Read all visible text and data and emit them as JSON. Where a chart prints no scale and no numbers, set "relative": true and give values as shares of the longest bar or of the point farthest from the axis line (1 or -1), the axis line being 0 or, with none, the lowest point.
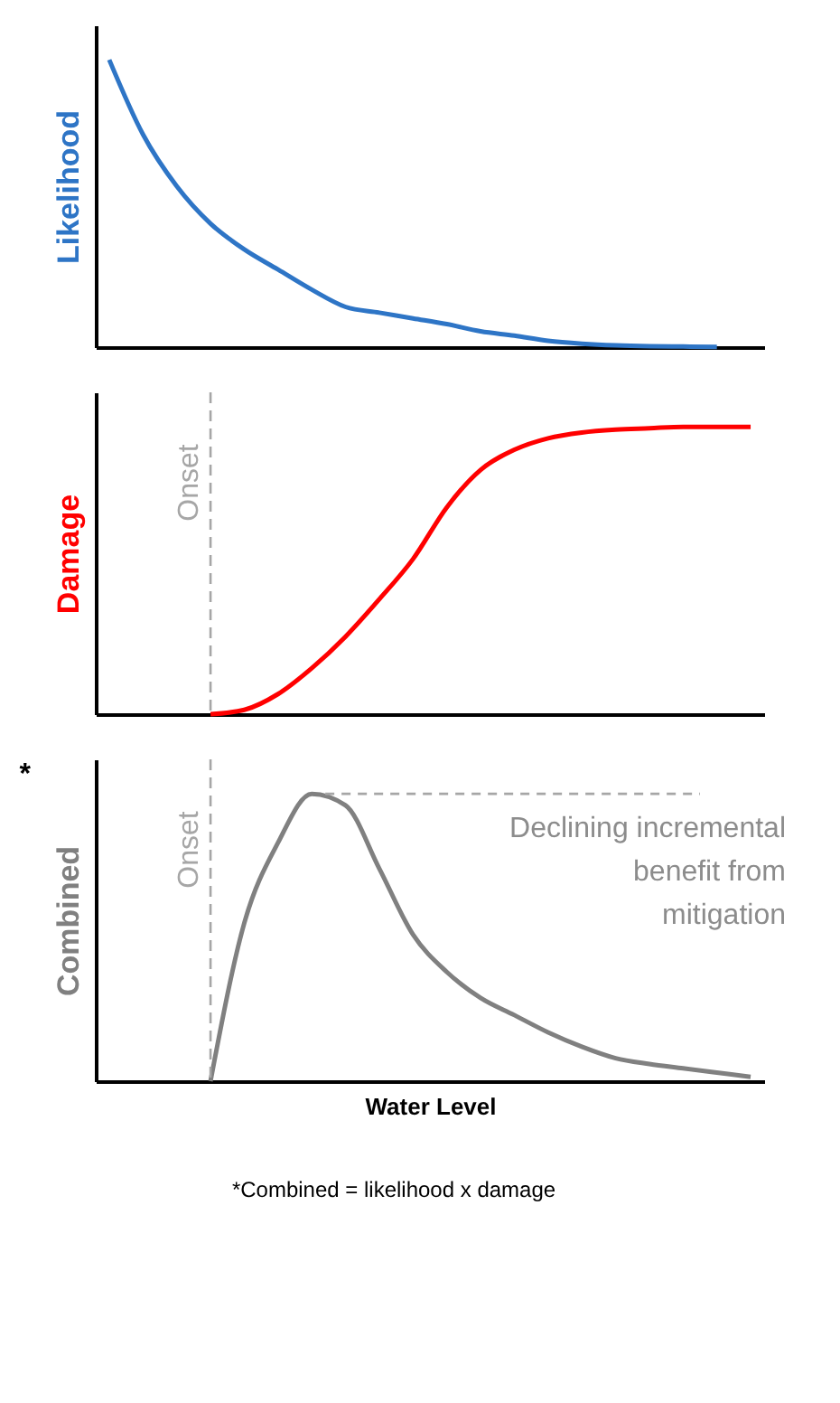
{
  "chart_data": [
    {
      "type": "line",
      "relative": true,
      "ylabel": "Likelihood",
      "categories": [
        null,
        null,
        null,
        null,
        null,
        null,
        null,
        null,
        null,
        null,
        null,
        null,
        null,
        null,
        null,
        null,
        null,
        null,
        null,
        null
      ],
      "series": [
        {
          "color": "#2e75c6",
          "values": [
            1,
            0.74,
            0.56,
            0.43,
            0.34,
            0.27,
            0.2,
            0.14,
            0.12,
            0.1,
            0.08,
            0.055,
            0.04,
            0.022,
            0.012,
            0.006,
            0.003,
            0.002,
            0.001,
            null
          ]
        }
      ]
    },
    {
      "type": "line",
      "relative": true,
      "ylabel": "Damage",
      "categories": [
        null,
        null,
        null,
        null,
        null,
        null,
        null,
        null,
        null,
        null,
        null,
        null,
        null,
        null,
        null,
        null,
        null,
        null,
        null,
        null
      ],
      "series": [
        {
          "color": "#ff0000",
          "values": [
            null,
            null,
            null,
            0,
            0.015,
            0.07,
            0.16,
            0.27,
            0.4,
            0.54,
            0.72,
            0.85,
            0.92,
            0.96,
            0.98,
            0.99,
            0.995,
            1,
            1,
            1
          ]
        }
      ],
      "annotations": [
        "Onset"
      ]
    },
    {
      "type": "line",
      "relative": true,
      "ylabel": "Combined",
      "xlabel": "Water Level",
      "categories": [
        null,
        null,
        null,
        null,
        null,
        null,
        null,
        null,
        null,
        null,
        null,
        null,
        null,
        null,
        null,
        null,
        null,
        null,
        null,
        null
      ],
      "series": [
        {
          "color": "#808080",
          "values": [
            null,
            null,
            null,
            0,
            0.55,
            0.83,
            1,
            0.96,
            0.74,
            0.51,
            0.38,
            0.29,
            0.23,
            0.17,
            0.12,
            0.08,
            0.06,
            0.045,
            0.03,
            0.015
          ]
        }
      ],
      "annotations": [
        "Onset",
        "*",
        "Declining incremental benefit from mitigation",
        "*Combined = likelihood x damage"
      ]
    }
  ]
}
